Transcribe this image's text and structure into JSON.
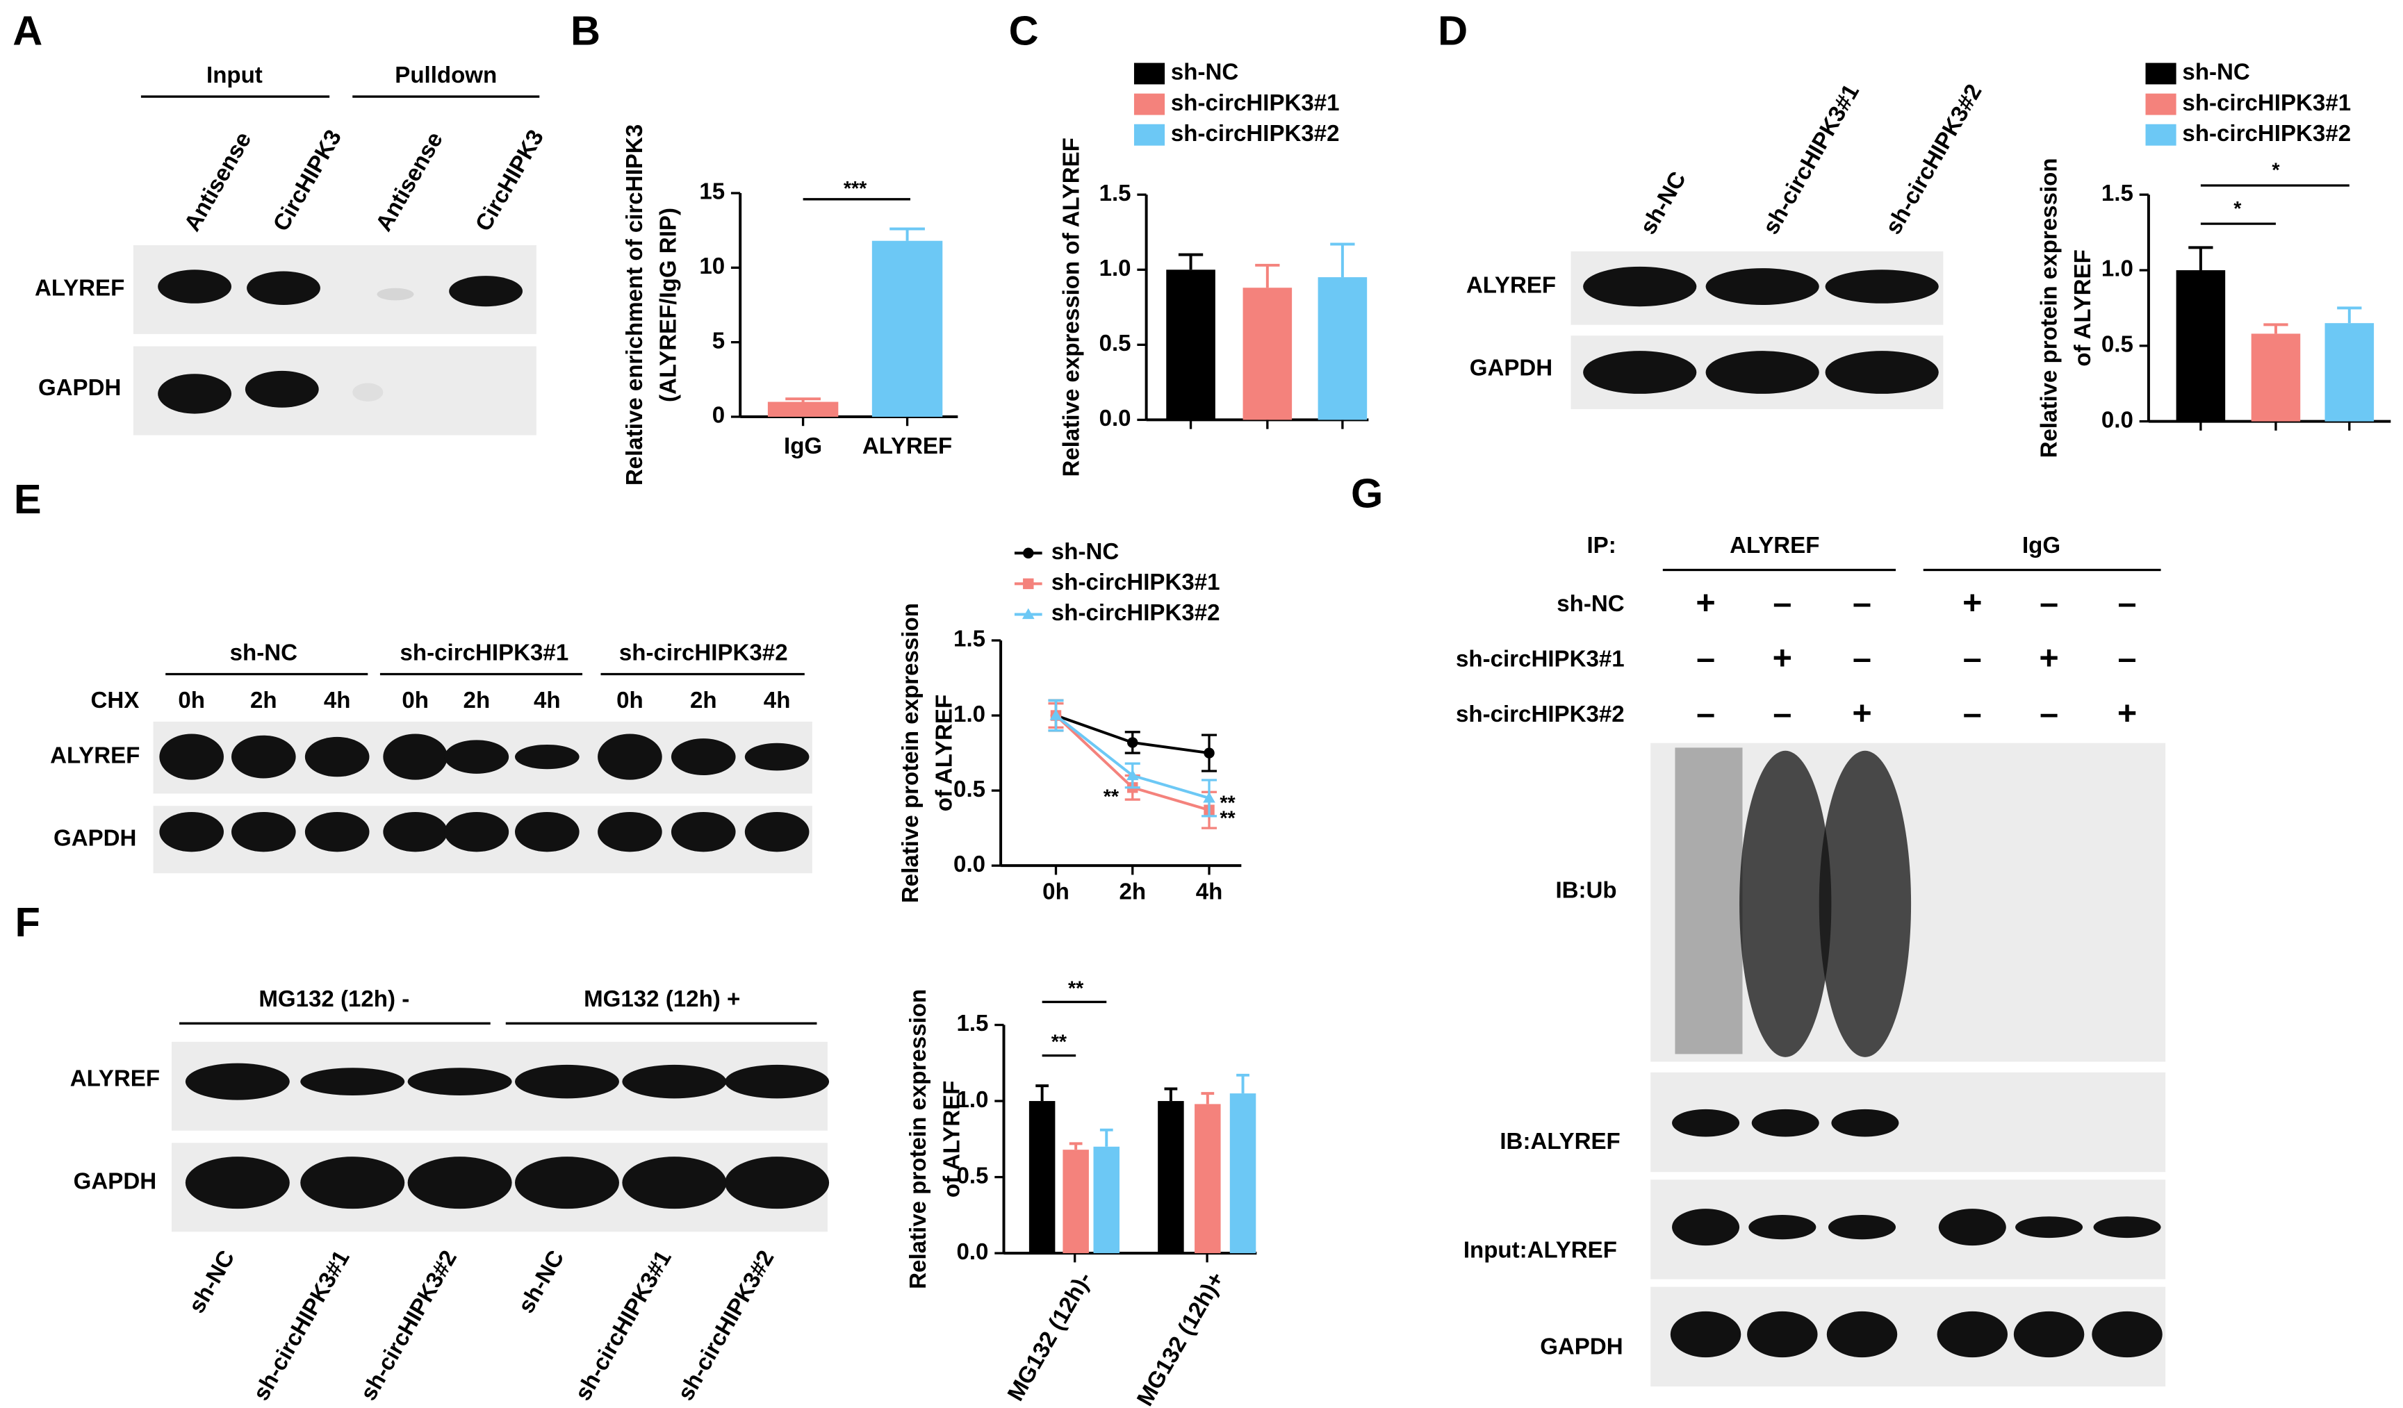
{
  "panels": {
    "A": {
      "letter": "A",
      "groups": [
        "Input",
        "Pulldown"
      ],
      "lanes": [
        "Antisense",
        "CircHIPK3",
        "Antisense",
        "CircHIPK3"
      ],
      "rows": [
        "ALYREF",
        "GAPDH"
      ]
    },
    "B": {
      "letter": "B"
    },
    "C": {
      "letter": "C"
    },
    "D": {
      "letter": "D",
      "lanes": [
        "sh-NC",
        "sh-circHIPK3#1",
        "sh-circHIPK3#2"
      ],
      "rows": [
        "ALYREF",
        "GAPDH"
      ]
    },
    "E": {
      "letter": "E",
      "groups": [
        "sh-NC",
        "sh-circHIPK3#1",
        "sh-circHIPK3#2"
      ],
      "treatment": "CHX",
      "times": [
        "0h",
        "2h",
        "4h",
        "0h",
        "2h",
        "4h",
        "0h",
        "2h",
        "4h"
      ],
      "rows": [
        "ALYREF",
        "GAPDH"
      ]
    },
    "F": {
      "letter": "F",
      "groups": [
        "MG132 (12h) -",
        "MG132 (12h) +"
      ],
      "rows": [
        "ALYREF",
        "GAPDH"
      ],
      "lanes": [
        "sh-NC",
        "sh-circHIPK3#1",
        "sh-circHIPK3#2",
        "sh-NC",
        "sh-circHIPK3#1",
        "sh-circHIPK3#2"
      ]
    },
    "G": {
      "letter": "G",
      "ip_label": "IP:",
      "ip_groups": [
        "ALYREF",
        "IgG"
      ],
      "conditions": [
        {
          "label": "sh-NC",
          "marks": [
            "+",
            "–",
            "–",
            "+",
            "–",
            "–"
          ]
        },
        {
          "label": "sh-circHIPK3#1",
          "marks": [
            "–",
            "+",
            "–",
            "–",
            "+",
            "–"
          ]
        },
        {
          "label": "sh-circHIPK3#2",
          "marks": [
            "–",
            "–",
            "+",
            "–",
            "–",
            "+"
          ]
        }
      ],
      "blots": [
        "IB:Ub",
        "IB:ALYREF",
        "Input:ALYREF",
        "GAPDH"
      ]
    }
  },
  "chart_data": [
    {
      "type": "bar",
      "ylabel": [
        "Relative enrichment of circHIPK3",
        "(ALYREF/IgG RIP)"
      ],
      "categories": [
        "IgG",
        "ALYREF"
      ],
      "series": [
        {
          "colors": [
            "#f4827c",
            "#6cc8f5"
          ],
          "values": [
            1,
            11.8
          ],
          "errors": [
            0.2,
            0.8
          ]
        }
      ],
      "ylim": [
        0,
        15
      ],
      "yticks": [
        0,
        5,
        10,
        15
      ],
      "annotations": [
        "***"
      ]
    },
    {
      "type": "bar",
      "ylabel": [
        "Relative expression of ALYREF"
      ],
      "categories": [
        null
      ],
      "series": [
        {
          "name": "sh-NC",
          "color": "#000000",
          "values": [
            1.0
          ],
          "errors": [
            0.1
          ]
        },
        {
          "name": "sh-circHIPK3#1",
          "color": "#f4827c",
          "values": [
            0.88
          ],
          "errors": [
            0.15
          ]
        },
        {
          "name": "sh-circHIPK3#2",
          "color": "#6cc8f5",
          "values": [
            0.95
          ],
          "errors": [
            0.22
          ]
        }
      ],
      "ylim": [
        0,
        1.5
      ],
      "yticks": [
        {
          "value": 0,
          "label": "0.0"
        },
        {
          "value": 0.5,
          "label": "0.5"
        },
        {
          "value": 1,
          "label": "1.0"
        },
        {
          "value": 1.5,
          "label": "1.5"
        }
      ]
    },
    {
      "type": "bar",
      "ylabel": [
        "Relative protein expression",
        "of ALYREF"
      ],
      "categories": [
        null
      ],
      "series": [
        {
          "name": "sh-NC",
          "color": "#000000",
          "values": [
            1.0
          ],
          "errors": [
            0.15
          ]
        },
        {
          "name": "sh-circHIPK3#1",
          "color": "#f4827c",
          "values": [
            0.58
          ],
          "errors": [
            0.06
          ]
        },
        {
          "name": "sh-circHIPK3#2",
          "color": "#6cc8f5",
          "values": [
            0.65
          ],
          "errors": [
            0.1
          ]
        }
      ],
      "ylim": [
        0,
        1.5
      ],
      "yticks": [
        {
          "value": 0,
          "label": "0.0"
        },
        {
          "value": 0.5,
          "label": "0.5"
        },
        {
          "value": 1,
          "label": "1.0"
        },
        {
          "value": 1.5,
          "label": "1.5"
        }
      ],
      "annotations": [
        "*",
        "*"
      ]
    },
    {
      "type": "line",
      "ylabel": [
        "Relative protein expression",
        "of ALYREF"
      ],
      "categories": [
        "0h",
        "2h",
        "4h"
      ],
      "series": [
        {
          "name": "sh-NC",
          "color": "#000000",
          "values": [
            1.0,
            0.82,
            0.75
          ],
          "errors": [
            0.1,
            0.07,
            0.12
          ]
        },
        {
          "name": "sh-circHIPK3#1",
          "color": "#f4827c",
          "values": [
            1.0,
            0.52,
            0.37
          ],
          "errors": [
            0.08,
            0.08,
            0.12
          ]
        },
        {
          "name": "sh-circHIPK3#2",
          "color": "#6cc8f5",
          "values": [
            1.0,
            0.6,
            0.45
          ],
          "errors": [
            0.1,
            0.08,
            0.12
          ]
        }
      ],
      "ylim": [
        0,
        1.5
      ],
      "yticks": [
        {
          "value": 0,
          "label": "0.0"
        },
        {
          "value": 0.5,
          "label": "0.5"
        },
        {
          "value": 1,
          "label": "1.0"
        },
        {
          "value": 1.5,
          "label": "1.5"
        }
      ],
      "annotations": [
        "**",
        "**",
        "**"
      ]
    },
    {
      "type": "bar",
      "ylabel": [
        "Relative protein expression",
        "of ALYREF"
      ],
      "categories": [
        "MG132 (12h)-",
        "MG132 (12h)+"
      ],
      "series": [
        {
          "color": "#000000",
          "values": [
            1.0,
            1.0
          ],
          "errors": [
            0.1,
            0.08
          ]
        },
        {
          "color": "#f4827c",
          "values": [
            0.68,
            0.98
          ],
          "errors": [
            0.04,
            0.07
          ]
        },
        {
          "color": "#6cc8f5",
          "values": [
            0.7,
            1.05
          ],
          "errors": [
            0.11,
            0.12
          ]
        }
      ],
      "ylim": [
        0,
        1.5
      ],
      "yticks": [
        {
          "value": 0,
          "label": "0.0"
        },
        {
          "value": 0.5,
          "label": "0.5"
        },
        {
          "value": 1,
          "label": "1.0"
        },
        {
          "value": 1.5,
          "label": "1.5"
        }
      ],
      "annotations": [
        "**",
        "**"
      ]
    }
  ]
}
